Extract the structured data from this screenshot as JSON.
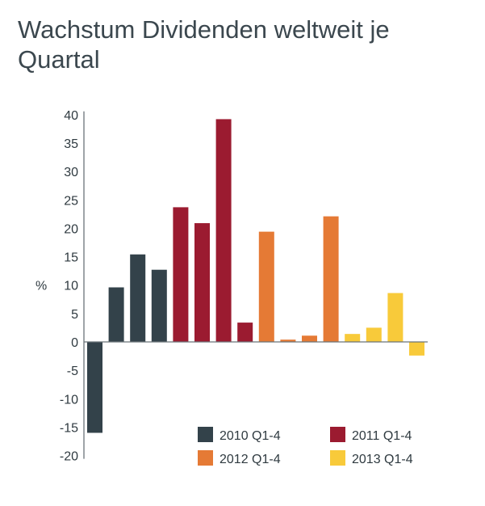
{
  "title": "Wachstum Dividenden weltweit je Quartal",
  "chart_data": {
    "type": "bar",
    "title": "Wachstum Dividenden weltweit je Quartal",
    "ylabel": "%",
    "xlabel": "",
    "ylim": [
      -20,
      40
    ],
    "yticks": [
      "40",
      "35",
      "30",
      "25",
      "20",
      "15",
      "10",
      "5",
      "0",
      "-5",
      "-10",
      "-15",
      "-20"
    ],
    "grid": false,
    "legend_position": "bottom-right",
    "series": [
      {
        "name": "2010 Q1-4",
        "color": "#33424a",
        "values": [
          -16.0,
          9.6,
          15.4,
          12.7
        ]
      },
      {
        "name": "2011 Q1-4",
        "color": "#9b1b30",
        "values": [
          23.7,
          20.9,
          39.2,
          3.4
        ]
      },
      {
        "name": "2012 Q1-4",
        "color": "#e57a35",
        "values": [
          19.4,
          0.4,
          1.1,
          22.1
        ]
      },
      {
        "name": "2013 Q1-4",
        "color": "#f8ca3a",
        "values": [
          1.4,
          2.5,
          8.6,
          -2.4
        ]
      }
    ]
  }
}
